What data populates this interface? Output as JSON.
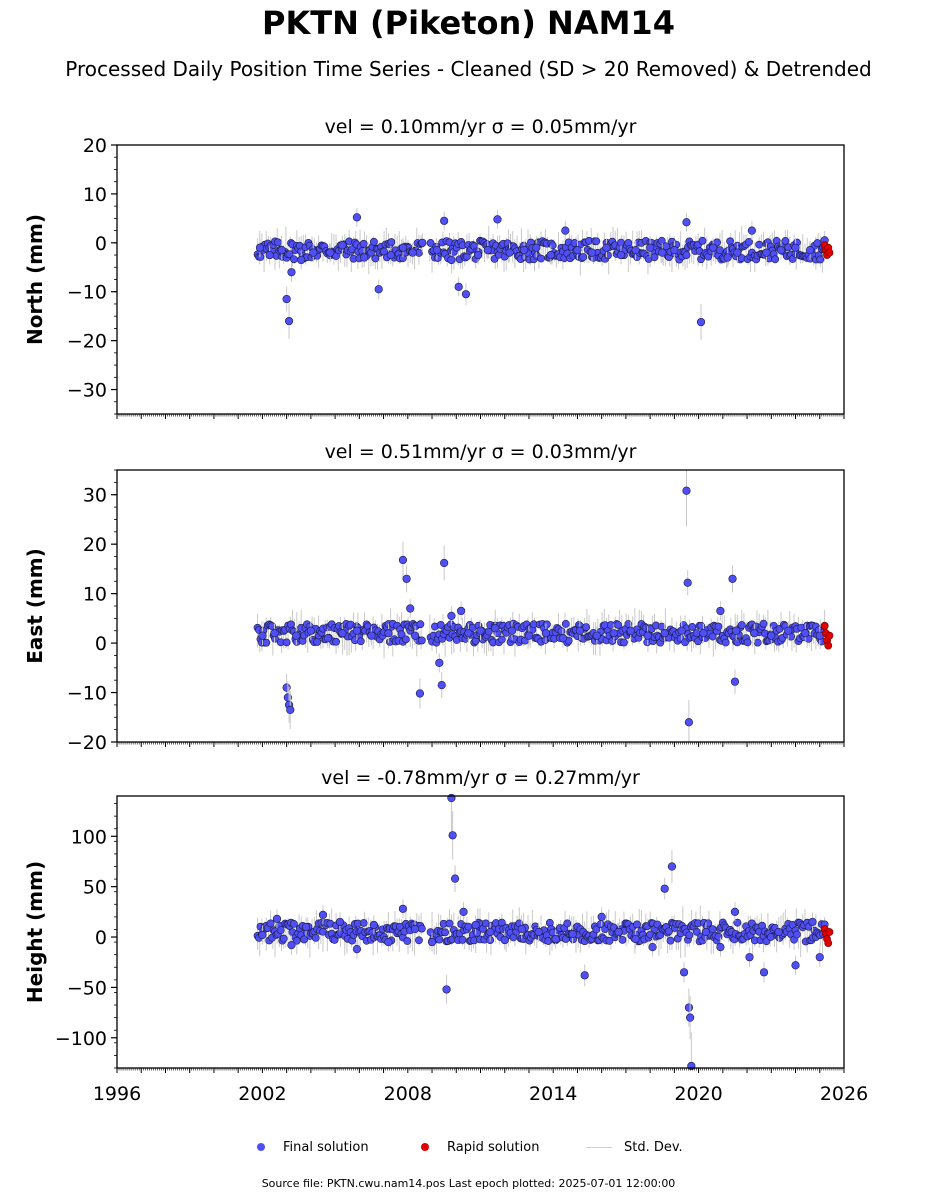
{
  "header": {
    "title": "PKTN (Piketon) NAM14",
    "subtitle": "Processed Daily Position Time Series - Cleaned (SD > 20 Removed) & Detrended"
  },
  "chart_data": [
    {
      "type": "scatter",
      "title": "vel = 0.10mm/yr   σ = 0.05mm/yr",
      "ylabel": "North (mm)",
      "xlabel": "",
      "xlim": [
        1996,
        2026
      ],
      "ylim": [
        -35,
        20
      ],
      "xticks": [
        1996,
        2002,
        2008,
        2014,
        2020,
        2026
      ],
      "yticks": [
        -30,
        -20,
        -10,
        0,
        10,
        20
      ],
      "grid": false,
      "series": [
        {
          "name": "Final solution",
          "color": "#4f4ff5",
          "x": [
            2001.9,
            2002.3,
            2002.8,
            2003.0,
            2003.1,
            2003.2,
            2003.6,
            2004.1,
            2004.8,
            2005.3,
            2005.9,
            2006.2,
            2006.8,
            2007.3,
            2007.8,
            2008.2,
            2008.6,
            2009.2,
            2009.5,
            2009.8,
            2010.1,
            2010.4,
            2010.9,
            2011.3,
            2011.7,
            2012.2,
            2012.8,
            2013.3,
            2013.9,
            2014.5,
            2015.0,
            2015.6,
            2016.2,
            2016.8,
            2017.4,
            2018.0,
            2018.5,
            2019.0,
            2019.5,
            2020.1,
            2020.6,
            2021.2,
            2021.6,
            2022.2,
            2022.8,
            2023.4,
            2024.0,
            2024.6,
            2025.2
          ],
          "y": [
            -1.0,
            -2.5,
            -1.5,
            -11.5,
            -16.0,
            -6.0,
            -3.5,
            -2.0,
            -2.0,
            -0.5,
            5.2,
            -3.0,
            -9.5,
            -2.5,
            -1.0,
            -2.0,
            0.0,
            -1.5,
            4.5,
            -3.5,
            -9.0,
            -10.5,
            -2.5,
            -1.5,
            4.8,
            -2.0,
            -1.5,
            -1.0,
            -2.5,
            2.5,
            -1.5,
            -2.0,
            -1.0,
            -2.5,
            -1.5,
            -1.0,
            -2.0,
            -1.5,
            4.2,
            -16.2,
            -1.0,
            -3.0,
            -2.0,
            2.5,
            -2.0,
            -1.5,
            -1.0,
            -1.5,
            0.5
          ]
        },
        {
          "name": "Rapid solution",
          "color": "#e00000",
          "x": [
            2025.2,
            2025.25,
            2025.3,
            2025.35,
            2025.4
          ],
          "y": [
            -0.5,
            -1.5,
            -2.5,
            -1.0,
            -2.0
          ]
        }
      ]
    },
    {
      "type": "scatter",
      "title": "vel = 0.51mm/yr   σ = 0.03mm/yr",
      "ylabel": "East (mm)",
      "xlabel": "",
      "xlim": [
        1996,
        2026
      ],
      "ylim": [
        -20,
        35
      ],
      "xticks": [
        1996,
        2002,
        2008,
        2014,
        2020,
        2026
      ],
      "yticks": [
        -20,
        -10,
        0,
        10,
        20,
        30
      ],
      "grid": false,
      "series": [
        {
          "name": "Final solution",
          "color": "#4f4ff5",
          "x": [
            2002.0,
            2002.5,
            2003.0,
            2003.05,
            2003.1,
            2003.15,
            2003.4,
            2004.0,
            2004.7,
            2005.3,
            2005.9,
            2006.5,
            2007.2,
            2007.8,
            2007.95,
            2008.1,
            2008.3,
            2008.5,
            2009.3,
            2009.4,
            2009.5,
            2009.8,
            2010.2,
            2010.5,
            2011.0,
            2011.6,
            2012.3,
            2013.0,
            2013.7,
            2014.4,
            2015.1,
            2015.8,
            2016.5,
            2017.2,
            2017.9,
            2018.6,
            2019.3,
            2019.5,
            2019.55,
            2019.6,
            2020.2,
            2020.9,
            2021.4,
            2021.5,
            2021.55,
            2022.3,
            2023.0,
            2023.7,
            2024.4,
            2025.0
          ],
          "y": [
            1.5,
            2.0,
            -9.0,
            -11.0,
            -12.5,
            -13.5,
            1.5,
            2.5,
            1.0,
            2.0,
            2.5,
            1.5,
            2.0,
            16.8,
            13.0,
            7.0,
            1.5,
            -10.2,
            -4.0,
            -8.5,
            16.2,
            5.5,
            6.5,
            2.0,
            2.5,
            3.0,
            2.5,
            1.5,
            2.0,
            1.0,
            2.5,
            1.5,
            2.0,
            2.5,
            1.5,
            2.0,
            2.5,
            30.8,
            12.2,
            -16.0,
            2.0,
            6.5,
            13.0,
            -7.8,
            2.5,
            2.0,
            1.5,
            2.5,
            2.0,
            1.5
          ]
        },
        {
          "name": "Rapid solution",
          "color": "#e00000",
          "x": [
            2025.2,
            2025.25,
            2025.3,
            2025.35,
            2025.4
          ],
          "y": [
            3.5,
            2.0,
            0.5,
            -0.5,
            1.5
          ]
        }
      ]
    },
    {
      "type": "scatter",
      "title": "vel = -0.78mm/yr   σ = 0.27mm/yr",
      "ylabel": "Height (mm)",
      "xlabel": "",
      "xlim": [
        1996,
        2026
      ],
      "ylim": [
        -130,
        140
      ],
      "xticks": [
        1996,
        2002,
        2008,
        2014,
        2020,
        2026
      ],
      "yticks": [
        -100,
        -50,
        0,
        50,
        100
      ],
      "grid": false,
      "series": [
        {
          "name": "Final solution",
          "color": "#4f4ff5",
          "x": [
            2002.0,
            2002.6,
            2003.2,
            2003.8,
            2004.5,
            2005.2,
            2005.9,
            2006.6,
            2007.2,
            2007.8,
            2008.3,
            2009.0,
            2009.6,
            2009.8,
            2009.85,
            2009.95,
            2010.3,
            2010.8,
            2011.4,
            2012.0,
            2012.7,
            2013.4,
            2014.1,
            2014.8,
            2015.3,
            2016.0,
            2016.7,
            2017.4,
            2018.1,
            2018.6,
            2018.9,
            2019.4,
            2019.6,
            2019.65,
            2019.7,
            2020.3,
            2020.9,
            2021.5,
            2022.1,
            2022.7,
            2023.3,
            2024.0,
            2024.7,
            2025.0
          ],
          "y": [
            2,
            18,
            -8,
            10,
            22,
            15,
            -12,
            12,
            -5,
            28,
            8,
            -5,
            -52,
            138,
            101,
            58,
            25,
            12,
            5,
            -3,
            8,
            5,
            -2,
            3,
            -38,
            20,
            5,
            -2,
            -10,
            48,
            70,
            -35,
            -70,
            -80,
            -128,
            5,
            -10,
            25,
            -20,
            -35,
            5,
            -28,
            15,
            -20
          ]
        },
        {
          "name": "Rapid solution",
          "color": "#e00000",
          "x": [
            2025.2,
            2025.25,
            2025.3,
            2025.35,
            2025.4
          ],
          "y": [
            8,
            3,
            -2,
            -6,
            5
          ]
        }
      ]
    }
  ],
  "legend": {
    "final_label": "Final solution",
    "rapid_label": "Rapid solution",
    "std_label": "Std. Dev."
  },
  "footer": {
    "text": "Source file: PKTN.cwu.nam14.pos  Last epoch plotted: 2025-07-01 12:00:00"
  }
}
